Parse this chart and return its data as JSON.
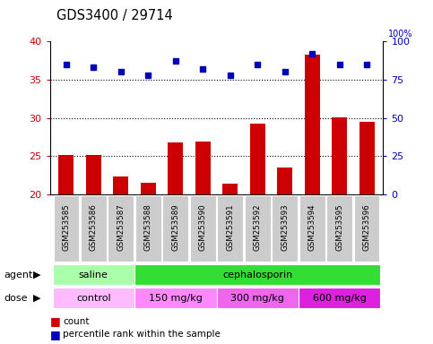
{
  "title": "GDS3400 / 29714",
  "samples": [
    "GSM253585",
    "GSM253586",
    "GSM253587",
    "GSM253588",
    "GSM253589",
    "GSM253590",
    "GSM253591",
    "GSM253592",
    "GSM253593",
    "GSM253594",
    "GSM253595",
    "GSM253596"
  ],
  "counts": [
    25.1,
    25.1,
    22.3,
    21.5,
    26.8,
    26.9,
    21.4,
    29.2,
    23.5,
    38.2,
    30.1,
    29.5
  ],
  "percentile_pct": [
    85,
    83,
    80,
    78,
    87,
    82,
    78,
    85,
    80,
    92,
    85,
    85
  ],
  "ymin": 20,
  "ymax": 40,
  "y2min": 0,
  "y2max": 100,
  "yticks": [
    20,
    25,
    30,
    35,
    40
  ],
  "y2ticks": [
    0,
    25,
    50,
    75,
    100
  ],
  "bar_color": "#cc0000",
  "dot_color": "#0000bb",
  "tick_bg_color": "#cccccc",
  "agent_saline_color": "#aaffaa",
  "agent_ceph_color": "#33dd33",
  "dose_control_color": "#ffbbff",
  "dose_150_color": "#ff88ff",
  "dose_300_color": "#ee66ee",
  "dose_600_color": "#dd22dd",
  "left_tick_color": "#cc0000",
  "right_tick_color": "#0000bb"
}
